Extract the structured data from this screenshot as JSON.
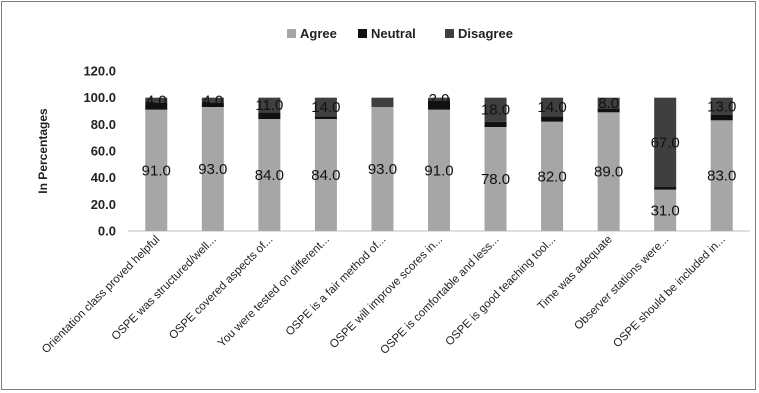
{
  "chart_data": {
    "type": "bar",
    "stacked": true,
    "ylabel": "In Percentages",
    "ylim": [
      0,
      120
    ],
    "yticks": [
      "0.0",
      "20.0",
      "40.0",
      "60.0",
      "80.0",
      "100.0",
      "120.0"
    ],
    "grid": false,
    "legend_position": "top",
    "categories": [
      "Orientation class proved helpful",
      "OSPE was structured/well...",
      "OSPE covered aspects of...",
      "You were tested on different...",
      "OSPE is a fair method of...",
      "OSPE will improve scores in...",
      "OSPE is comfortable and less...",
      "OSPE is good teaching tool...",
      "Time was adequate",
      "Observer stations were...",
      "OSPE should be included in..."
    ],
    "series": [
      {
        "name": "Agree",
        "color": "#a6a6a6",
        "values": [
          91,
          93,
          84,
          84,
          93,
          91,
          78,
          82,
          89,
          31,
          83
        ],
        "labels": [
          "91.0",
          "93.0",
          "84.0",
          "84.0",
          "93.0",
          "91.0",
          "78.0",
          "82.0",
          "89.0",
          "31.0",
          "83.0"
        ]
      },
      {
        "name": "Neutral",
        "color": "#111111",
        "values": [
          5,
          3,
          5,
          2,
          0,
          7,
          4,
          4,
          3,
          2,
          4
        ],
        "labels": []
      },
      {
        "name": "Disagree",
        "color": "#3f3f3f",
        "values": [
          4,
          4,
          11,
          14,
          7,
          2,
          18,
          14,
          8,
          67,
          13
        ],
        "labels": [
          "4.0",
          "4.0",
          "11.0",
          "14.0",
          "",
          "2.0",
          "18.0",
          "14.0",
          "8.0",
          "67.0",
          "13.0"
        ]
      }
    ]
  }
}
